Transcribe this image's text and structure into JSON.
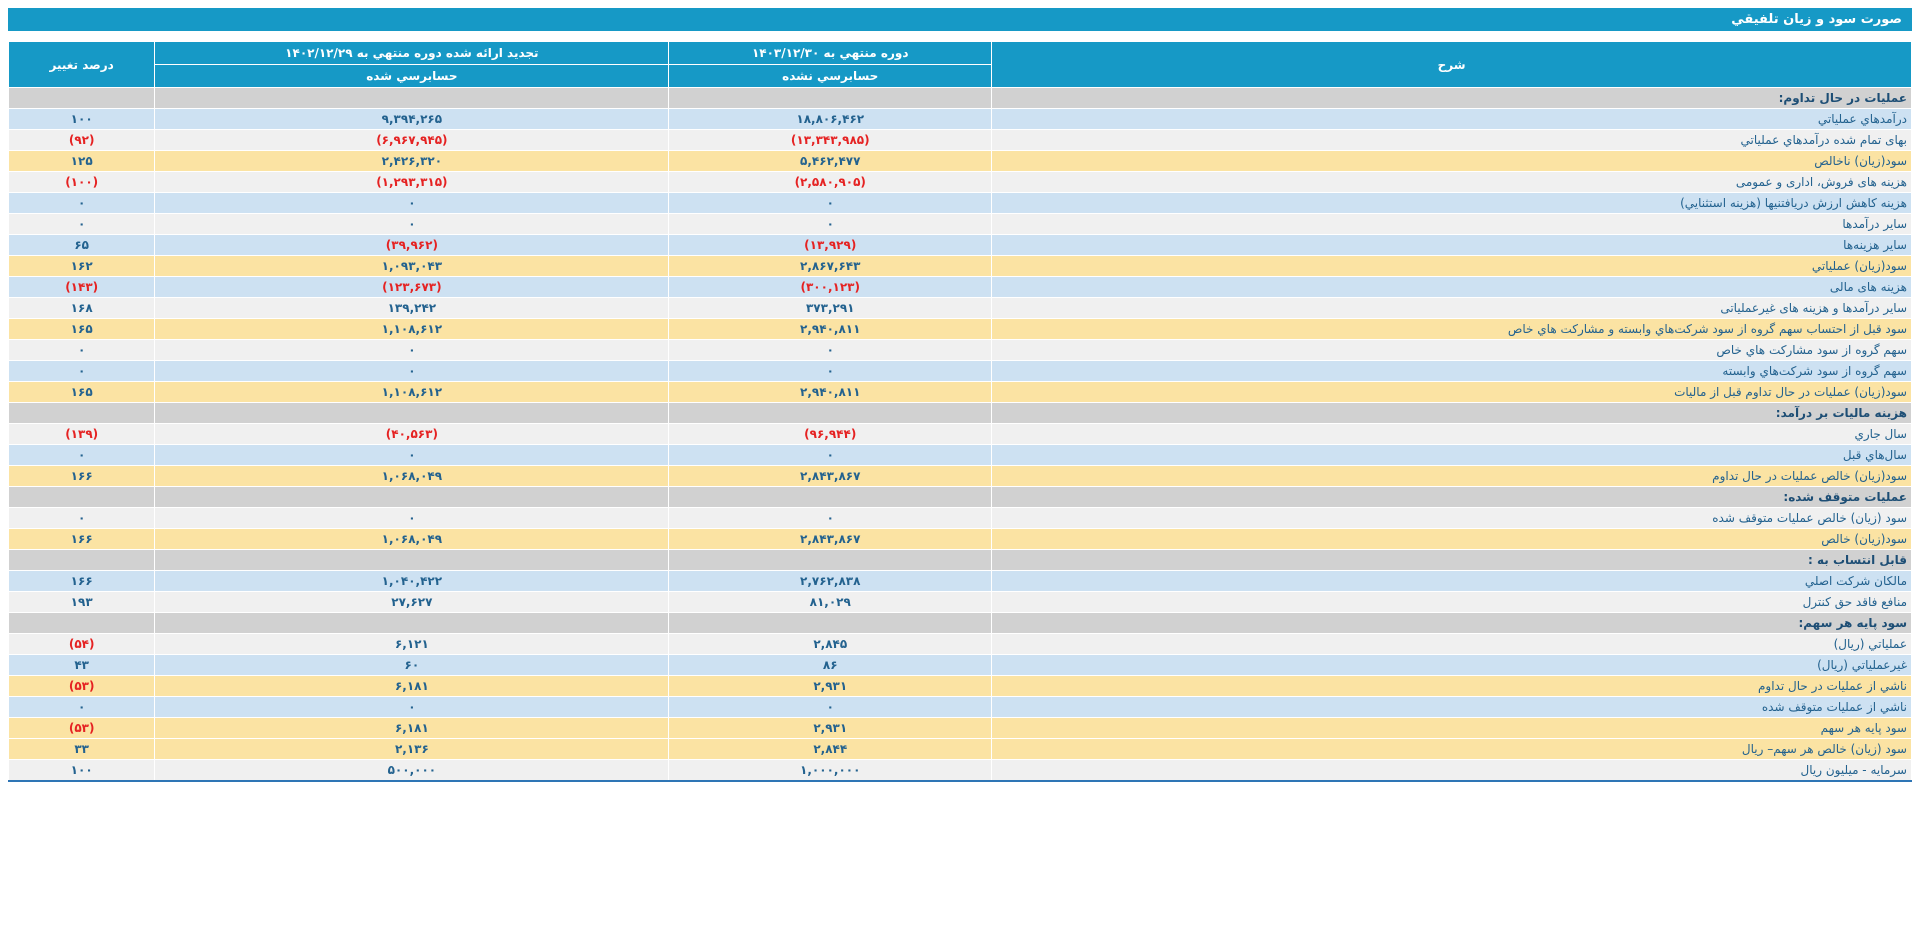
{
  "title": "صورت سود و زيان تلفيقي",
  "colors": {
    "header_teal": "#1699C6",
    "section_gray": "#D1D1D1",
    "row_blue": "#CDE1F2",
    "row_plain": "#F0F0F0",
    "row_yellow": "#FBE3A3",
    "text_blue": "#23628F",
    "negative_red": "#E52222",
    "bottom_border_blue": "#2E75B5"
  },
  "table": {
    "headers": {
      "description": "شرح",
      "current_period": "دوره منتهي به ۱۴۰۳/۱۲/۳۰",
      "current_period_status": "حسابرسي نشده",
      "prior_period": "تجديد ارائه شده دوره منتهي به ۱۴۰۲/۱۲/۲۹",
      "prior_period_status": "حسابرسي شده",
      "change_percent": "درصد تغيير"
    },
    "rows": [
      {
        "type": "section",
        "label": "عمليات در حال تداوم:"
      },
      {
        "type": "data",
        "variant": "blue",
        "label": "درآمدهاي عملياتي",
        "current": "۱۸,۸۰۶,۴۶۲",
        "current_neg": false,
        "prior": "۹,۳۹۴,۲۶۵",
        "prior_neg": false,
        "change": "۱۰۰",
        "change_neg": false
      },
      {
        "type": "data",
        "variant": "plain",
        "label": "بهای تمام شده درآمدهاي عملياتي",
        "current": "(۱۳,۳۴۳,۹۸۵)",
        "current_neg": true,
        "prior": "(۶,۹۶۷,۹۴۵)",
        "prior_neg": true,
        "change": "(۹۲)",
        "change_neg": true
      },
      {
        "type": "data",
        "variant": "yellow",
        "label": "سود(زيان) ناخالص",
        "current": "۵,۴۶۲,۴۷۷",
        "current_neg": false,
        "prior": "۲,۴۲۶,۳۲۰",
        "prior_neg": false,
        "change": "۱۲۵",
        "change_neg": false
      },
      {
        "type": "data",
        "variant": "plain",
        "label": "هزينه های فروش، اداری و عمومی",
        "current": "(۲,۵۸۰,۹۰۵)",
        "current_neg": true,
        "prior": "(۱,۲۹۳,۳۱۵)",
        "prior_neg": true,
        "change": "(۱۰۰)",
        "change_neg": true
      },
      {
        "type": "data",
        "variant": "blue",
        "label": "هزينه کاهش ارزش دريافتنيها (هزينه استثنايي)",
        "current": "۰",
        "current_neg": false,
        "prior": "۰",
        "prior_neg": false,
        "change": "۰",
        "change_neg": false
      },
      {
        "type": "data",
        "variant": "plain",
        "label": "ساير درآمدها",
        "current": "۰",
        "current_neg": false,
        "prior": "۰",
        "prior_neg": false,
        "change": "۰",
        "change_neg": false
      },
      {
        "type": "data",
        "variant": "blue",
        "label": "ساير هزينه‌ها",
        "current": "(۱۳,۹۲۹)",
        "current_neg": true,
        "prior": "(۳۹,۹۶۲)",
        "prior_neg": true,
        "change": "۶۵",
        "change_neg": false
      },
      {
        "type": "data",
        "variant": "yellow",
        "label": "سود(زيان) عملياتي",
        "current": "۲,۸۶۷,۶۴۳",
        "current_neg": false,
        "prior": "۱,۰۹۳,۰۴۳",
        "prior_neg": false,
        "change": "۱۶۲",
        "change_neg": false
      },
      {
        "type": "data",
        "variant": "blue",
        "label": "هزينه های مالی",
        "current": "(۳۰۰,۱۲۳)",
        "current_neg": true,
        "prior": "(۱۲۳,۶۷۳)",
        "prior_neg": true,
        "change": "(۱۴۳)",
        "change_neg": true
      },
      {
        "type": "data",
        "variant": "plain",
        "label": "ساير درآمدها و هزينه های غيرعملياتی",
        "current": "۳۷۳,۲۹۱",
        "current_neg": false,
        "prior": "۱۳۹,۲۴۲",
        "prior_neg": false,
        "change": "۱۶۸",
        "change_neg": false
      },
      {
        "type": "data",
        "variant": "yellow",
        "label": "سود قبل از احتساب سهم گروه از سود شرکت‌هاي وابسته و مشارکت هاي خاص",
        "current": "۲,۹۴۰,۸۱۱",
        "current_neg": false,
        "prior": "۱,۱۰۸,۶۱۲",
        "prior_neg": false,
        "change": "۱۶۵",
        "change_neg": false
      },
      {
        "type": "data",
        "variant": "plain",
        "label": "سهم گروه از سود مشارکت هاي خاص",
        "current": "۰",
        "current_neg": false,
        "prior": "۰",
        "prior_neg": false,
        "change": "۰",
        "change_neg": false
      },
      {
        "type": "data",
        "variant": "blue",
        "label": "سهم گروه از سود شرکت‌هاي وابسته",
        "current": "۰",
        "current_neg": false,
        "prior": "۰",
        "prior_neg": false,
        "change": "۰",
        "change_neg": false
      },
      {
        "type": "data",
        "variant": "yellow",
        "label": "سود(زيان) عمليات در حال تداوم قبل از ماليات",
        "current": "۲,۹۴۰,۸۱۱",
        "current_neg": false,
        "prior": "۱,۱۰۸,۶۱۲",
        "prior_neg": false,
        "change": "۱۶۵",
        "change_neg": false
      },
      {
        "type": "section",
        "label": "هزينه ماليات بر درآمد:"
      },
      {
        "type": "data",
        "variant": "plain",
        "label": "سال جاري",
        "current": "(۹۶,۹۴۴)",
        "current_neg": true,
        "prior": "(۴۰,۵۶۳)",
        "prior_neg": true,
        "change": "(۱۳۹)",
        "change_neg": true
      },
      {
        "type": "data",
        "variant": "blue",
        "label": "سال‌هاي قبل",
        "current": "۰",
        "current_neg": false,
        "prior": "۰",
        "prior_neg": false,
        "change": "۰",
        "change_neg": false
      },
      {
        "type": "data",
        "variant": "yellow",
        "label": "سود(زيان) خالص عمليات در حال تداوم",
        "current": "۲,۸۴۳,۸۶۷",
        "current_neg": false,
        "prior": "۱,۰۶۸,۰۴۹",
        "prior_neg": false,
        "change": "۱۶۶",
        "change_neg": false
      },
      {
        "type": "section",
        "label": "عمليات متوقف شده:"
      },
      {
        "type": "data",
        "variant": "plain",
        "label": "سود (زيان) خالص عمليات متوقف شده",
        "current": "۰",
        "current_neg": false,
        "prior": "۰",
        "prior_neg": false,
        "change": "۰",
        "change_neg": false
      },
      {
        "type": "data",
        "variant": "yellow",
        "label": "سود(زيان) خالص",
        "current": "۲,۸۴۳,۸۶۷",
        "current_neg": false,
        "prior": "۱,۰۶۸,۰۴۹",
        "prior_neg": false,
        "change": "۱۶۶",
        "change_neg": false
      },
      {
        "type": "section",
        "label": "قابل انتساب به :"
      },
      {
        "type": "data",
        "variant": "blue",
        "label": "مالکان شرکت اصلي",
        "current": "۲,۷۶۲,۸۳۸",
        "current_neg": false,
        "prior": "۱,۰۴۰,۴۲۲",
        "prior_neg": false,
        "change": "۱۶۶",
        "change_neg": false
      },
      {
        "type": "data",
        "variant": "plain",
        "label": "منافع فاقد حق کنترل",
        "current": "۸۱,۰۲۹",
        "current_neg": false,
        "prior": "۲۷,۶۲۷",
        "prior_neg": false,
        "change": "۱۹۳",
        "change_neg": false
      },
      {
        "type": "section",
        "label": "سود پايه هر سهم:"
      },
      {
        "type": "data",
        "variant": "plain",
        "label": "عملياتي (ريال)",
        "current": "۲,۸۴۵",
        "current_neg": false,
        "prior": "۶,۱۲۱",
        "prior_neg": false,
        "change": "(۵۴)",
        "change_neg": true
      },
      {
        "type": "data",
        "variant": "blue",
        "label": "غيرعملياتي (ريال)",
        "current": "۸۶",
        "current_neg": false,
        "prior": "۶۰",
        "prior_neg": false,
        "change": "۴۳",
        "change_neg": false
      },
      {
        "type": "data",
        "variant": "yellow",
        "label": "ناشي از عمليات در حال تداوم",
        "current": "۲,۹۳۱",
        "current_neg": false,
        "prior": "۶,۱۸۱",
        "prior_neg": false,
        "change": "(۵۳)",
        "change_neg": true
      },
      {
        "type": "data",
        "variant": "blue",
        "label": "ناشي از عمليات متوقف شده",
        "current": "۰",
        "current_neg": false,
        "prior": "۰",
        "prior_neg": false,
        "change": "۰",
        "change_neg": false
      },
      {
        "type": "data",
        "variant": "yellow",
        "label": "سود پايه هر سهم",
        "current": "۲,۹۳۱",
        "current_neg": false,
        "prior": "۶,۱۸۱",
        "prior_neg": false,
        "change": "(۵۳)",
        "change_neg": true
      },
      {
        "type": "data",
        "variant": "yellow",
        "label": "سود (زيان) خالص هر سهم– ريال",
        "current": "۲,۸۴۴",
        "current_neg": false,
        "prior": "۲,۱۳۶",
        "prior_neg": false,
        "change": "۳۳",
        "change_neg": false
      },
      {
        "type": "data",
        "variant": "plain",
        "label": "سرمايه - ميليون ريال",
        "current": "۱,۰۰۰,۰۰۰",
        "current_neg": false,
        "prior": "۵۰۰,۰۰۰",
        "prior_neg": false,
        "change": "۱۰۰",
        "change_neg": false
      }
    ]
  }
}
